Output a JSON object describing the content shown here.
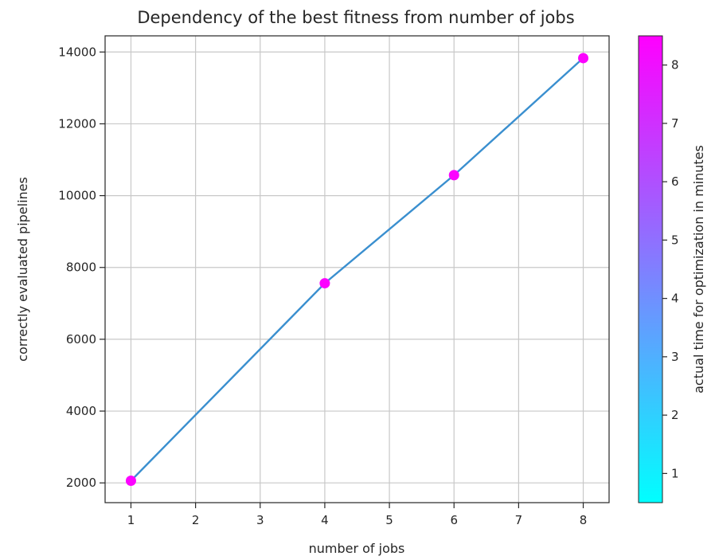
{
  "chart_data": {
    "type": "scatter",
    "title": "Dependency of the best fitness from number of jobs",
    "xlabel": "number of jobs",
    "ylabel": "correctly evaluated pipelines",
    "colorbar_label": "actual time for optimization in minutes",
    "x": [
      1,
      4,
      6,
      8
    ],
    "y": [
      2060,
      7560,
      10570,
      13830
    ],
    "color_values": [
      8.4,
      8.4,
      8.4,
      8.4
    ],
    "xlim": [
      0.6,
      8.4
    ],
    "ylim": [
      1450,
      14450
    ],
    "x_ticks": [
      1,
      2,
      3,
      4,
      5,
      6,
      7,
      8
    ],
    "y_ticks": [
      2000,
      4000,
      6000,
      8000,
      10000,
      12000,
      14000
    ],
    "colorbar_range": [
      0.5,
      8.5
    ],
    "colorbar_ticks": [
      1,
      2,
      3,
      4,
      5,
      6,
      7,
      8
    ],
    "colormap": [
      "#00ffff",
      "#ff00ff"
    ],
    "line_color": "#3a8fcf",
    "grid": true
  }
}
